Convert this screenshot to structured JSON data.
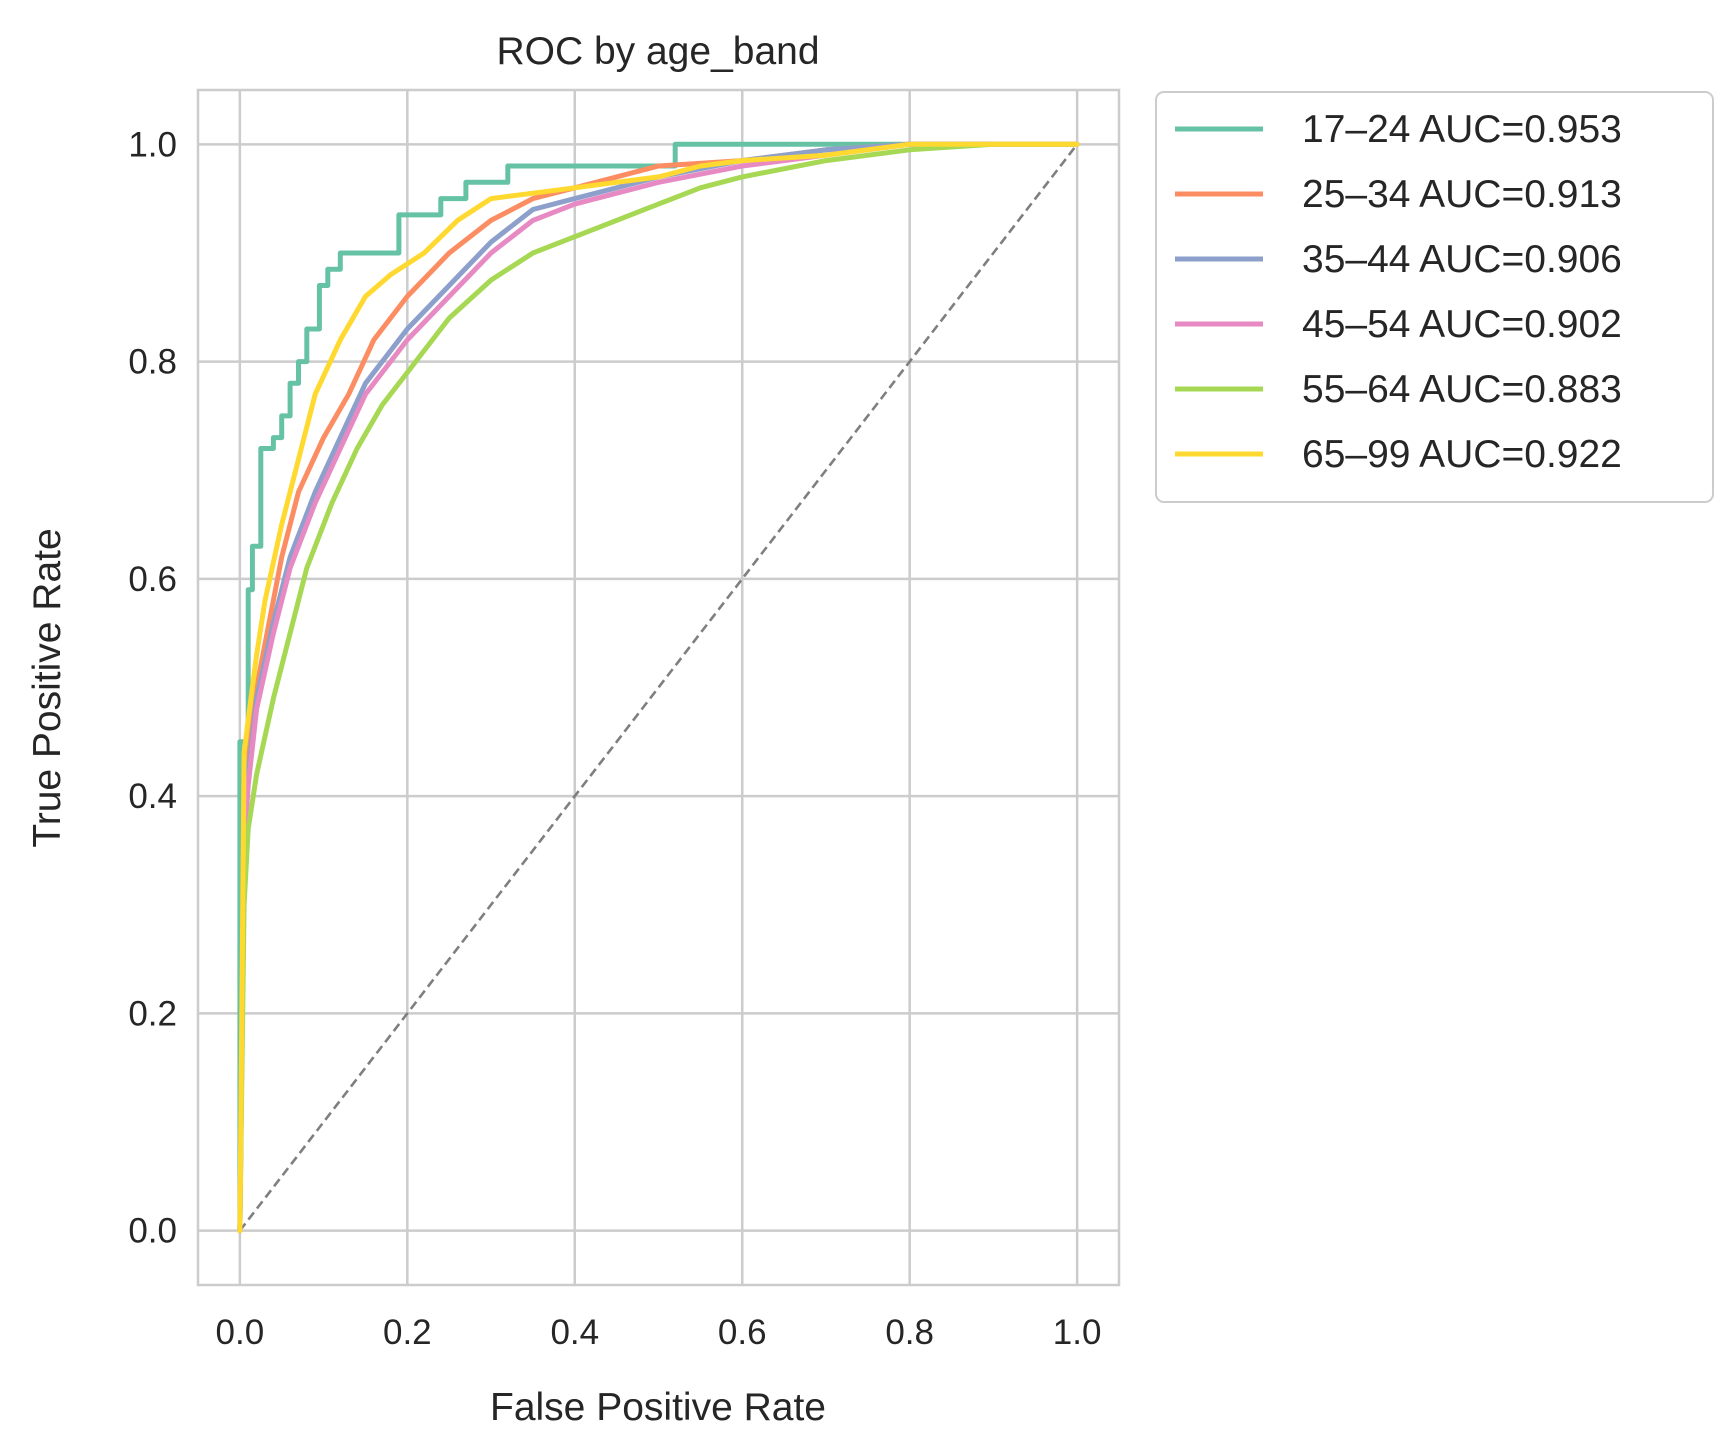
{
  "chart_data": {
    "type": "line",
    "title": "ROC by age_band",
    "xlabel": "False Positive Rate",
    "ylabel": "True Positive Rate",
    "xlim": [
      -0.05,
      1.05
    ],
    "ylim": [
      -0.05,
      1.05
    ],
    "xticks": [
      "0.0",
      "0.2",
      "0.4",
      "0.6",
      "0.8",
      "1.0"
    ],
    "yticks": [
      "0.0",
      "0.2",
      "0.4",
      "0.6",
      "0.8",
      "1.0"
    ],
    "grid": true,
    "legend_position": "outside upper right",
    "reference_line": {
      "x": [
        0,
        1
      ],
      "y": [
        0,
        1
      ],
      "style": "dashed",
      "color": "#7f7f7f"
    },
    "series": [
      {
        "name": "17–24",
        "label": "17–24  AUC=0.953",
        "auc": 0.953,
        "color": "#66c2a5",
        "x": [
          0,
          0,
          0.01,
          0.01,
          0.015,
          0.015,
          0.025,
          0.025,
          0.04,
          0.04,
          0.05,
          0.05,
          0.06,
          0.06,
          0.07,
          0.07,
          0.08,
          0.08,
          0.095,
          0.095,
          0.105,
          0.105,
          0.12,
          0.12,
          0.19,
          0.19,
          0.24,
          0.24,
          0.27,
          0.27,
          0.32,
          0.32,
          0.52,
          0.52,
          1.0
        ],
        "y": [
          0,
          0.45,
          0.45,
          0.59,
          0.59,
          0.63,
          0.63,
          0.72,
          0.72,
          0.73,
          0.73,
          0.75,
          0.75,
          0.78,
          0.78,
          0.8,
          0.8,
          0.83,
          0.83,
          0.87,
          0.87,
          0.885,
          0.885,
          0.9,
          0.9,
          0.935,
          0.935,
          0.95,
          0.95,
          0.965,
          0.965,
          0.98,
          0.98,
          1.0,
          1.0
        ]
      },
      {
        "name": "25–34",
        "label": "25–34  AUC=0.913",
        "auc": 0.913,
        "color": "#fc8d62",
        "x": [
          0,
          0.005,
          0.01,
          0.02,
          0.03,
          0.05,
          0.07,
          0.1,
          0.13,
          0.16,
          0.2,
          0.25,
          0.3,
          0.35,
          0.4,
          0.45,
          0.5,
          0.6,
          0.7,
          0.8,
          1.0
        ],
        "y": [
          0,
          0.38,
          0.44,
          0.5,
          0.54,
          0.62,
          0.68,
          0.73,
          0.77,
          0.82,
          0.86,
          0.9,
          0.93,
          0.95,
          0.96,
          0.97,
          0.98,
          0.985,
          0.995,
          1.0,
          1.0
        ]
      },
      {
        "name": "35–44",
        "label": "35–44  AUC=0.906",
        "auc": 0.906,
        "color": "#8da0cb",
        "x": [
          0,
          0.005,
          0.01,
          0.02,
          0.04,
          0.06,
          0.09,
          0.12,
          0.15,
          0.2,
          0.25,
          0.3,
          0.35,
          0.4,
          0.45,
          0.5,
          0.6,
          0.7,
          0.8,
          1.0
        ],
        "y": [
          0,
          0.36,
          0.42,
          0.49,
          0.56,
          0.62,
          0.68,
          0.73,
          0.78,
          0.83,
          0.87,
          0.91,
          0.94,
          0.95,
          0.96,
          0.97,
          0.985,
          0.995,
          1.0,
          1.0
        ]
      },
      {
        "name": "45–54",
        "label": "45–54  AUC=0.902",
        "auc": 0.902,
        "color": "#e78ac3",
        "x": [
          0,
          0.005,
          0.01,
          0.02,
          0.04,
          0.06,
          0.09,
          0.12,
          0.15,
          0.2,
          0.25,
          0.3,
          0.35,
          0.4,
          0.45,
          0.5,
          0.6,
          0.7,
          0.8,
          1.0
        ],
        "y": [
          0,
          0.35,
          0.41,
          0.48,
          0.55,
          0.61,
          0.67,
          0.72,
          0.77,
          0.82,
          0.86,
          0.9,
          0.93,
          0.945,
          0.955,
          0.965,
          0.98,
          0.99,
          1.0,
          1.0
        ]
      },
      {
        "name": "55–64",
        "label": "55–64  AUC=0.883",
        "auc": 0.883,
        "color": "#a6d854",
        "x": [
          0,
          0.005,
          0.01,
          0.02,
          0.04,
          0.06,
          0.08,
          0.11,
          0.14,
          0.17,
          0.2,
          0.25,
          0.3,
          0.35,
          0.4,
          0.45,
          0.5,
          0.55,
          0.6,
          0.7,
          0.8,
          0.9,
          1.0
        ],
        "y": [
          0,
          0.3,
          0.37,
          0.42,
          0.49,
          0.55,
          0.61,
          0.67,
          0.72,
          0.76,
          0.79,
          0.84,
          0.875,
          0.9,
          0.915,
          0.93,
          0.945,
          0.96,
          0.97,
          0.985,
          0.995,
          1.0,
          1.0
        ]
      },
      {
        "name": "65–99",
        "label": "65–99  AUC=0.922",
        "auc": 0.922,
        "color": "#ffd92f",
        "x": [
          0,
          0.005,
          0.01,
          0.02,
          0.03,
          0.05,
          0.07,
          0.09,
          0.12,
          0.15,
          0.18,
          0.22,
          0.26,
          0.3,
          0.35,
          0.4,
          0.45,
          0.5,
          0.55,
          0.6,
          0.7,
          0.8,
          1.0
        ],
        "y": [
          0,
          0.44,
          0.47,
          0.53,
          0.58,
          0.65,
          0.71,
          0.77,
          0.82,
          0.86,
          0.88,
          0.9,
          0.93,
          0.95,
          0.955,
          0.96,
          0.965,
          0.97,
          0.98,
          0.985,
          0.99,
          1.0,
          1.0
        ]
      }
    ]
  }
}
